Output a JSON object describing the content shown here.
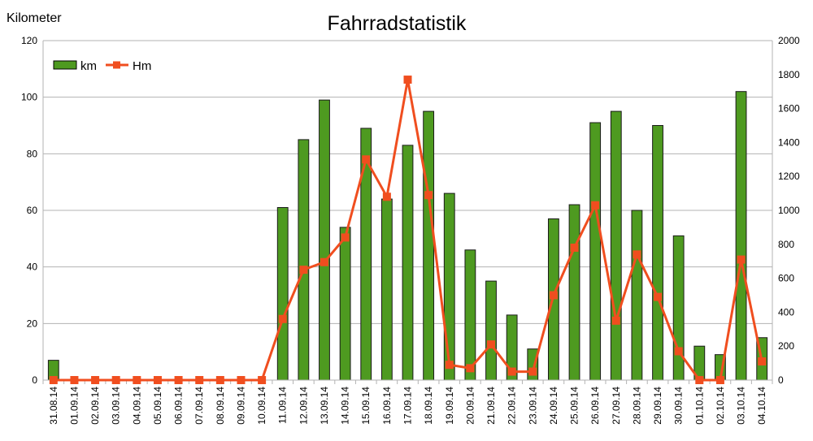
{
  "chart_data": {
    "type": "bar",
    "title": "Fahrradstatistik",
    "ylabel": "Kilometer",
    "ylim": [
      0,
      120
    ],
    "yticks": [
      0,
      20,
      40,
      60,
      80,
      100,
      120
    ],
    "y2lim": [
      0,
      2000
    ],
    "y2ticks": [
      0,
      200,
      400,
      600,
      800,
      1000,
      1200,
      1400,
      1600,
      1800,
      2000
    ],
    "grid": true,
    "legend_position": "top-left",
    "categories": [
      "31.08.14",
      "01.09.14",
      "02.09.14",
      "03.09.14",
      "04.09.14",
      "05.09.14",
      "06.09.14",
      "07.09.14",
      "08.09.14",
      "09.09.14",
      "10.09.14",
      "11.09.14",
      "12.09.14",
      "13.09.14",
      "14.09.14",
      "15.09.14",
      "16.09.14",
      "17.09.14",
      "18.09.14",
      "19.09.14",
      "20.09.14",
      "21.09.14",
      "22.09.14",
      "23.09.14",
      "24.09.14",
      "25.09.14",
      "26.09.14",
      "27.09.14",
      "28.09.14",
      "29.09.14",
      "30.09.14",
      "01.10.14",
      "02.10.14",
      "03.10.14",
      "04.10.14"
    ],
    "series": [
      {
        "name": "km",
        "type": "bar",
        "axis": "left",
        "color": "#4e9a20",
        "values": [
          7,
          0,
          0,
          0,
          0,
          0,
          0,
          0,
          0,
          0,
          0,
          61,
          85,
          99,
          54,
          89,
          64,
          83,
          95,
          66,
          46,
          35,
          23,
          11,
          57,
          62,
          91,
          95,
          60,
          90,
          51,
          12,
          9,
          102,
          15
        ]
      },
      {
        "name": "Hm",
        "type": "line",
        "axis": "right",
        "color": "#f04e1f",
        "values": [
          0,
          0,
          0,
          0,
          0,
          0,
          0,
          0,
          0,
          0,
          0,
          360,
          650,
          695,
          840,
          1300,
          1080,
          1770,
          1090,
          90,
          70,
          210,
          50,
          50,
          500,
          780,
          1030,
          350,
          740,
          490,
          170,
          0,
          0,
          710,
          110
        ]
      }
    ]
  }
}
